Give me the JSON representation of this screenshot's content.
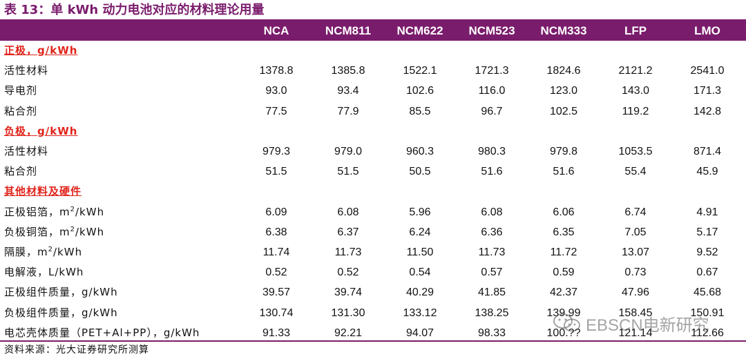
{
  "title": "表 13：单 kWh 动力电池对应的材料理论用量",
  "columns": [
    "NCA",
    "NCM811",
    "NCM622",
    "NCM523",
    "NCM333",
    "LFP",
    "LMO"
  ],
  "rows": [
    {
      "type": "section",
      "label": "正极，g/kWh"
    },
    {
      "type": "data",
      "label": "活性材料",
      "values": [
        "1378.8",
        "1385.8",
        "1522.1",
        "1721.3",
        "1824.6",
        "2121.2",
        "2541.0"
      ]
    },
    {
      "type": "data",
      "label": "导电剂",
      "values": [
        "93.0",
        "93.4",
        "102.6",
        "116.0",
        "123.0",
        "143.0",
        "171.3"
      ]
    },
    {
      "type": "data",
      "label": "粘合剂",
      "values": [
        "77.5",
        "77.9",
        "85.5",
        "96.7",
        "102.5",
        "119.2",
        "142.8"
      ]
    },
    {
      "type": "section",
      "label": "负极，g/kWh"
    },
    {
      "type": "data",
      "label": "活性材料",
      "values": [
        "979.3",
        "979.0",
        "960.3",
        "980.3",
        "979.8",
        "1053.5",
        "871.4"
      ]
    },
    {
      "type": "data",
      "label": "粘合剂",
      "values": [
        "51.5",
        "51.5",
        "50.5",
        "51.6",
        "51.6",
        "55.4",
        "45.9"
      ]
    },
    {
      "type": "section",
      "label": "其他材料及硬件"
    },
    {
      "type": "data",
      "label": "正极铝箔，m",
      "sup": "2",
      "suffix": "/kWh",
      "values": [
        "6.09",
        "6.08",
        "5.96",
        "6.08",
        "6.06",
        "6.74",
        "4.91"
      ]
    },
    {
      "type": "data",
      "label": "负极铜箔，m",
      "sup": "2",
      "suffix": "/kWh",
      "values": [
        "6.38",
        "6.37",
        "6.24",
        "6.36",
        "6.35",
        "7.05",
        "5.17"
      ]
    },
    {
      "type": "data",
      "label": "隔膜，m",
      "sup": "2",
      "suffix": "/kWh",
      "values": [
        "11.74",
        "11.73",
        "11.50",
        "11.73",
        "11.72",
        "13.07",
        "9.52"
      ]
    },
    {
      "type": "data",
      "label": "电解液，L/kWh",
      "values": [
        "0.52",
        "0.52",
        "0.54",
        "0.57",
        "0.59",
        "0.73",
        "0.67"
      ]
    },
    {
      "type": "data",
      "label": "正极组件质量，g/kWh",
      "values": [
        "39.57",
        "39.74",
        "40.29",
        "41.85",
        "42.37",
        "47.96",
        "45.68"
      ]
    },
    {
      "type": "data",
      "label": "负极组件质量，g/kWh",
      "values": [
        "130.74",
        "131.30",
        "133.12",
        "138.25",
        "139.99",
        "158.45",
        "150.91"
      ]
    },
    {
      "type": "data",
      "label": "电芯壳体质量（PET+Al+PP），g/kWh",
      "values": [
        "91.33",
        "92.21",
        "94.07",
        "98.33",
        "100.??",
        "121.14",
        "112.66"
      ]
    }
  ],
  "source": "资料来源：光大证券研究所测算",
  "watermark": {
    "text": "EBSCN电新研究",
    "icon": "wechat-icon"
  },
  "colors": {
    "header_bg": "#7a1c6c",
    "title": "#7a1c6c",
    "section": "#e0241b"
  }
}
